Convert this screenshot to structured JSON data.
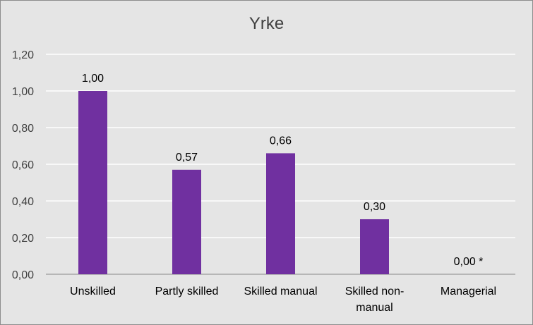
{
  "chart_data": {
    "type": "bar",
    "title": "Yrke",
    "xlabel": "",
    "ylabel": "",
    "ylim": [
      0,
      1.2
    ],
    "y_ticks": [
      "0,00",
      "0,20",
      "0,40",
      "0,60",
      "0,80",
      "1,00",
      "1,20"
    ],
    "y_tick_values": [
      0,
      0.2,
      0.4,
      0.6,
      0.8,
      1.0,
      1.2
    ],
    "categories": [
      [
        "Unskilled"
      ],
      [
        "Partly skilled"
      ],
      [
        "Skilled manual"
      ],
      [
        "Skilled non-",
        "manual"
      ],
      [
        "Managerial"
      ]
    ],
    "values": [
      1.0,
      0.57,
      0.66,
      0.3,
      0.0
    ],
    "data_labels": [
      "1,00",
      "0,57",
      "0,66",
      "0,30",
      "0,00 *"
    ],
    "grid": true,
    "legend": "none",
    "colors": {
      "bar": "#7030a0",
      "background": "#e5e5e5",
      "border": "#8c8c8c",
      "axis": "#a6a6a6",
      "text": "#404040"
    }
  }
}
